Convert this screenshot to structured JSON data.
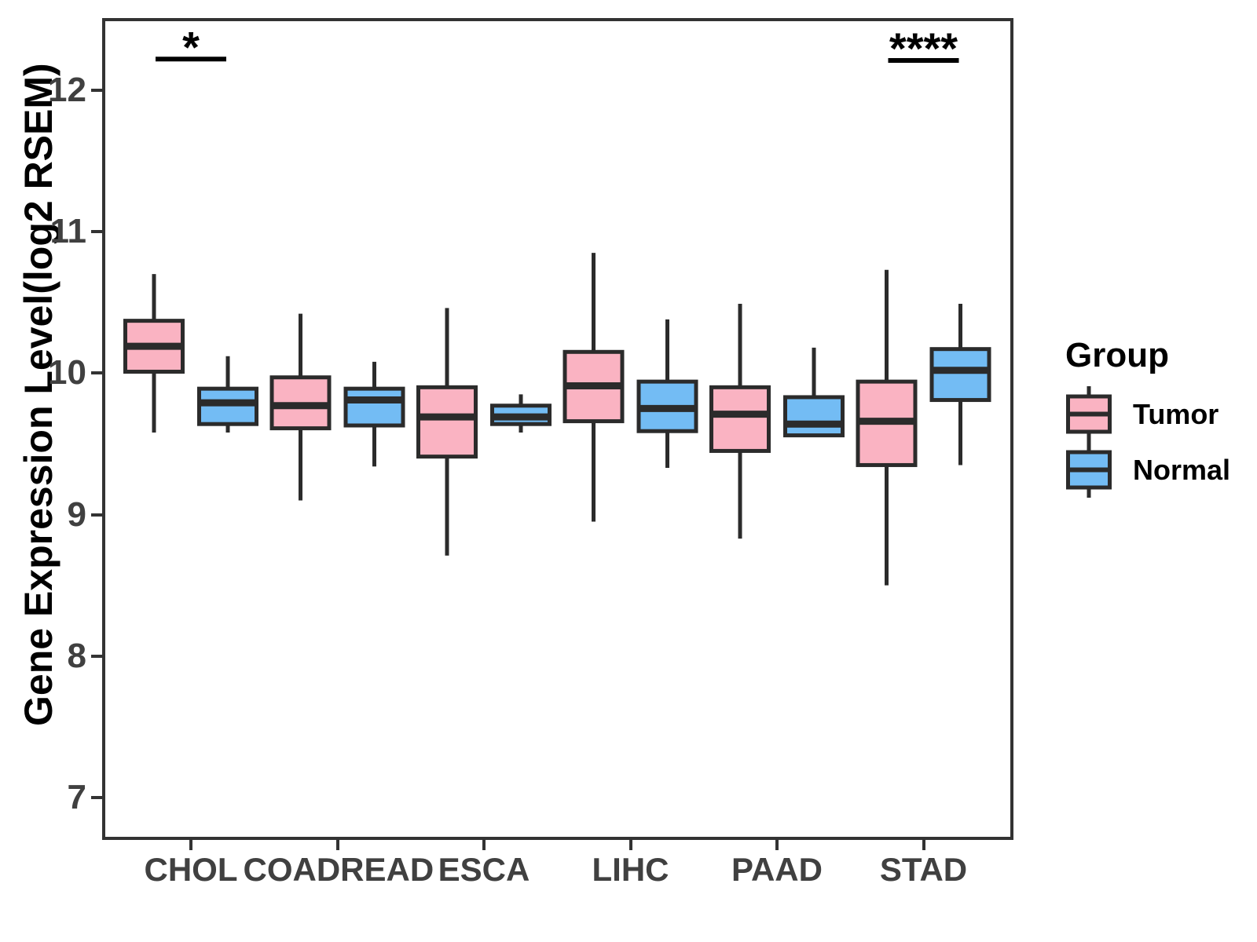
{
  "chart_data": {
    "type": "boxplot",
    "title": "",
    "xlabel": "",
    "ylabel": "Gene Expression Level(log2 RSEM)",
    "ylim": [
      6.7,
      12.51
    ],
    "yticks": [
      7,
      8,
      9,
      10,
      11,
      12
    ],
    "grid": "off",
    "categories": [
      "CHOL",
      "COADREAD",
      "ESCA",
      "LIHC",
      "PAAD",
      "STAD"
    ],
    "box_value_order": [
      "min",
      "q1",
      "median",
      "q3",
      "max"
    ],
    "series": [
      {
        "name": "Tumor",
        "color": "#FAB3C2",
        "data": [
          [
            9.58,
            10.01,
            10.19,
            10.37,
            10.7
          ],
          [
            9.1,
            9.61,
            9.77,
            9.97,
            10.42
          ],
          [
            8.71,
            9.41,
            9.69,
            9.9,
            10.46
          ],
          [
            8.95,
            9.66,
            9.91,
            10.15,
            10.85
          ],
          [
            8.83,
            9.45,
            9.71,
            9.9,
            10.49
          ],
          [
            8.5,
            9.35,
            9.66,
            9.94,
            10.73
          ]
        ]
      },
      {
        "name": "Normal",
        "color": "#73BCF4",
        "data": [
          [
            9.58,
            9.64,
            9.79,
            9.89,
            10.12
          ],
          [
            9.34,
            9.63,
            9.81,
            9.89,
            10.08
          ],
          [
            9.58,
            9.64,
            9.69,
            9.77,
            9.85
          ],
          [
            9.33,
            9.59,
            9.75,
            9.94,
            10.38
          ],
          [
            9.56,
            9.56,
            9.64,
            9.83,
            10.18
          ],
          [
            9.35,
            9.81,
            10.02,
            10.17,
            10.49
          ]
        ]
      }
    ],
    "annotations": [
      {
        "category": "CHOL",
        "label": "*",
        "bar_y": 12.22
      },
      {
        "category": "STAD",
        "label": "****",
        "bar_y": 12.21
      }
    ],
    "legend": {
      "title": "Group",
      "position": "right",
      "entries": [
        {
          "label": "Tumor",
          "color": "#FAB3C2"
        },
        {
          "label": "Normal",
          "color": "#73BCF4"
        }
      ]
    },
    "style": {
      "box_border_color": "#2B2B2B",
      "panel_border_color": "#333333",
      "tick_text_color": "#404040",
      "annotation_color": "#000000"
    }
  }
}
